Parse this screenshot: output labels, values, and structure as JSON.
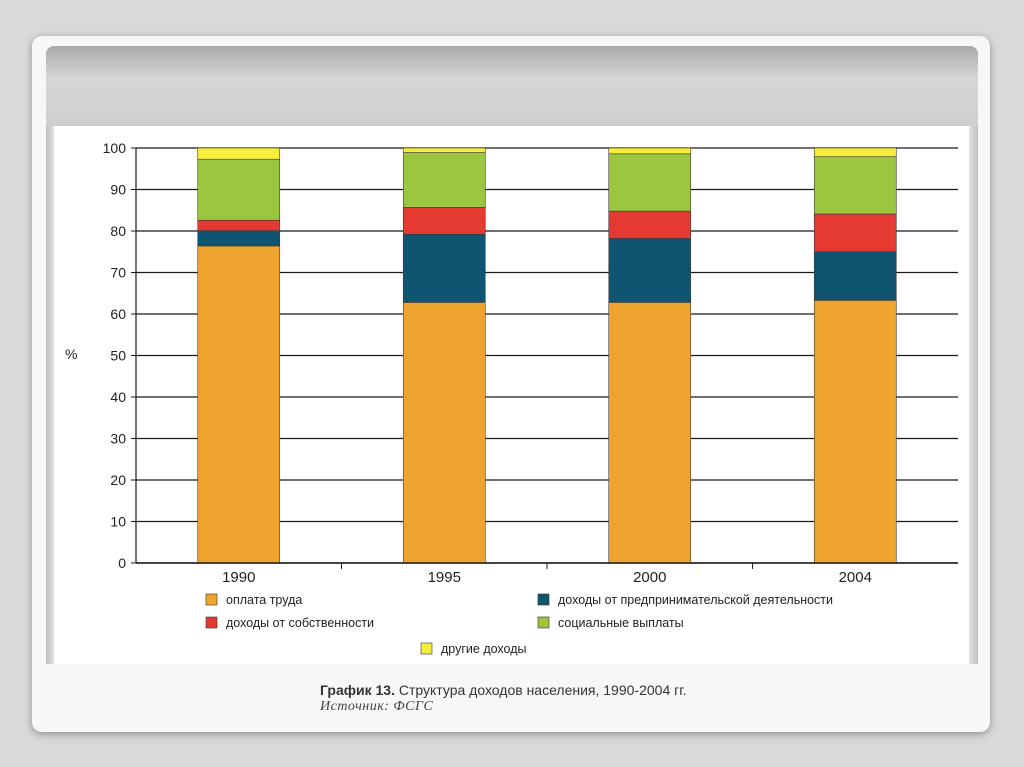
{
  "chart_data": {
    "type": "bar",
    "stacked": true,
    "categories": [
      "1990",
      "1995",
      "2000",
      "2004"
    ],
    "ylabel": "%",
    "ylim": [
      0,
      100
    ],
    "yticks": [
      "0",
      "10",
      "20",
      "30",
      "40",
      "50",
      "60",
      "70",
      "80",
      "90",
      "100"
    ],
    "grid": true,
    "legend_position": "bottom",
    "series": [
      {
        "name": "оплата труда",
        "color": "#f0a430",
        "values": [
          76.4,
          62.8,
          62.8,
          63.3
        ]
      },
      {
        "name": "доходы от предпринимательской деятельности",
        "color": "#0f5572",
        "values": [
          3.7,
          16.4,
          15.4,
          11.7
        ]
      },
      {
        "name": "доходы от собственности",
        "color": "#e43a32",
        "values": [
          2.5,
          6.5,
          6.6,
          9.1
        ]
      },
      {
        "name": "социальные выплаты",
        "color": "#9cc540",
        "values": [
          14.7,
          13.2,
          13.8,
          13.8
        ]
      },
      {
        "name": "другие доходы",
        "color": "#f6ee3a",
        "values": [
          2.7,
          1.1,
          1.4,
          2.1
        ]
      }
    ]
  },
  "caption": {
    "number": "График 13.",
    "title": " Структура доходов населения, 1990-2004 гг.",
    "source": "Источник: ФСГС"
  }
}
